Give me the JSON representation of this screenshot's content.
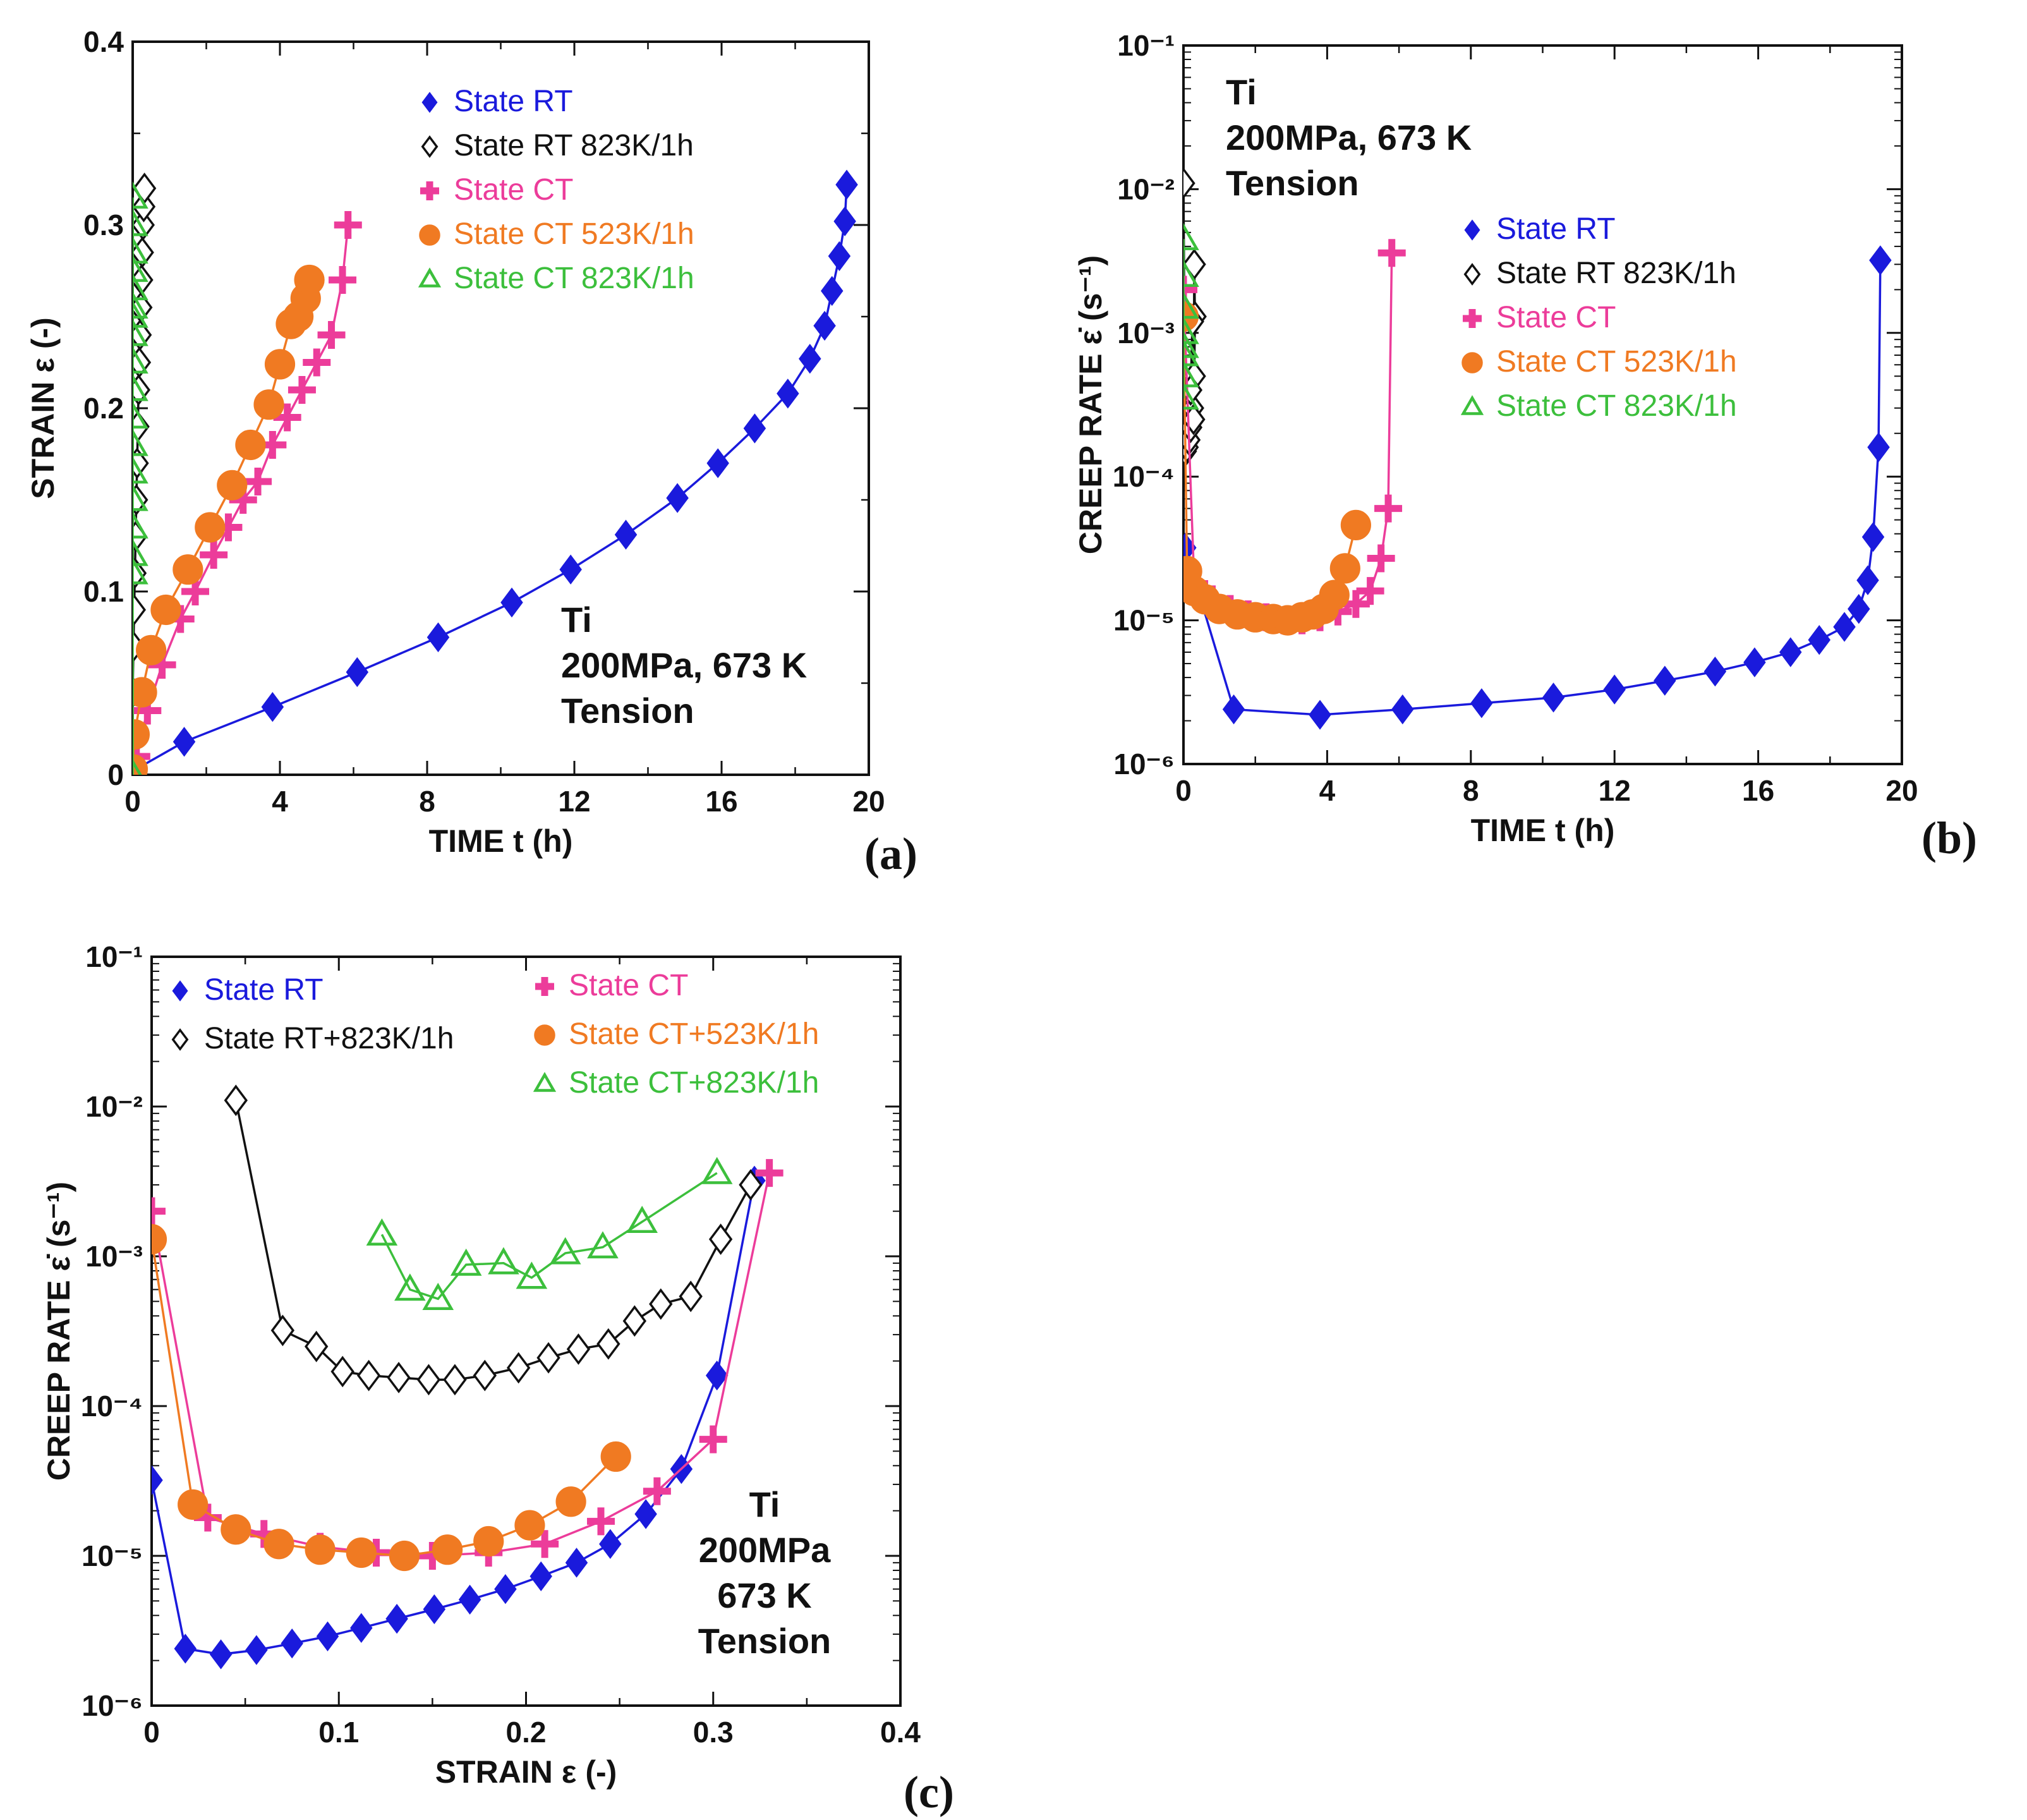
{
  "colors": {
    "State RT": "#1a1adc",
    "State RT 823K/1h": "#111111",
    "State CT": "#ec3c9a",
    "State CT 523K/1h": "#f07a22",
    "State CT 823K/1h": "#3cbf3c"
  },
  "chart_data": [
    {
      "id": "a",
      "type": "line",
      "panel_label": "(a)",
      "xlabel": "TIME t (h)",
      "ylabel": "STRAIN ε (-)",
      "xlim": [
        0,
        20
      ],
      "ylim": [
        0,
        0.4
      ],
      "yscale": "linear",
      "xticks": [
        "0",
        "4",
        "8",
        "12",
        "16",
        "20"
      ],
      "yticks": [
        "0",
        "0.1",
        "0.2",
        "0.3",
        "0.4"
      ],
      "annotation": [
        "Ti",
        "200MPa, 673 K",
        "Tension"
      ],
      "legend_position": "top-right",
      "series": [
        {
          "name": "State RT",
          "marker": "diamond-filled",
          "x": [
            0,
            1.4,
            3.8,
            6.1,
            8.3,
            10.3,
            11.9,
            13.4,
            14.8,
            15.9,
            16.9,
            17.8,
            18.4,
            18.8,
            19.0,
            19.2,
            19.35,
            19.4
          ],
          "y": [
            0.002,
            0.018,
            0.037,
            0.056,
            0.075,
            0.094,
            0.112,
            0.131,
            0.151,
            0.17,
            0.189,
            0.208,
            0.227,
            0.245,
            0.264,
            0.283,
            0.302,
            0.322
          ]
        },
        {
          "name": "State RT 823K/1h",
          "marker": "diamond-open",
          "x": [
            0.0,
            0.02,
            0.04,
            0.06,
            0.08,
            0.1,
            0.12,
            0.14,
            0.16,
            0.18,
            0.2,
            0.22,
            0.24,
            0.26,
            0.28,
            0.3,
            0.32
          ],
          "y": [
            0.045,
            0.07,
            0.09,
            0.11,
            0.13,
            0.15,
            0.17,
            0.19,
            0.21,
            0.225,
            0.24,
            0.255,
            0.27,
            0.285,
            0.3,
            0.31,
            0.32
          ]
        },
        {
          "name": "State CT",
          "marker": "plus",
          "x": [
            0.1,
            0.4,
            0.8,
            1.3,
            1.7,
            2.2,
            2.6,
            3.0,
            3.4,
            3.8,
            4.2,
            4.6,
            5.0,
            5.4,
            5.7,
            5.85
          ],
          "y": [
            0.01,
            0.035,
            0.06,
            0.085,
            0.1,
            0.12,
            0.135,
            0.15,
            0.16,
            0.18,
            0.195,
            0.21,
            0.225,
            0.24,
            0.27,
            0.3
          ]
        },
        {
          "name": "State CT 523K/1h",
          "marker": "circle-filled",
          "x": [
            0.0,
            0.05,
            0.25,
            0.5,
            0.9,
            1.5,
            2.1,
            2.7,
            3.2,
            3.7,
            4.0,
            4.3,
            4.5,
            4.7,
            4.8
          ],
          "y": [
            0.003,
            0.022,
            0.045,
            0.068,
            0.09,
            0.112,
            0.135,
            0.158,
            0.18,
            0.202,
            0.224,
            0.246,
            0.25,
            0.26,
            0.27
          ]
        },
        {
          "name": "State CT 823K/1h",
          "marker": "triangle-open",
          "x": [
            0.0,
            0.0,
            0.0,
            0.0,
            0.0,
            0.0,
            0.0,
            0.0,
            0.0,
            0.0,
            0.0,
            0.0,
            0.0,
            0.0,
            0.0,
            0.0,
            0.0,
            0.0
          ],
          "y": [
            0.0,
            0.11,
            0.12,
            0.135,
            0.15,
            0.165,
            0.18,
            0.195,
            0.21,
            0.225,
            0.24,
            0.25,
            0.255,
            0.265,
            0.275,
            0.285,
            0.3,
            0.315
          ]
        }
      ]
    },
    {
      "id": "b",
      "type": "line",
      "panel_label": "(b)",
      "xlabel": "TIME t (h)",
      "ylabel": "CREEP RATE ε̇ (s⁻¹)",
      "xlim": [
        0,
        20
      ],
      "ylim": [
        1e-06,
        0.1
      ],
      "yscale": "log",
      "xticks": [
        "0",
        "4",
        "8",
        "12",
        "16",
        "20"
      ],
      "yticks": [
        "10⁻⁶",
        "10⁻⁵",
        "10⁻⁴",
        "10⁻³",
        "10⁻²",
        "10⁻¹"
      ],
      "annotation": [
        "Ti",
        "200MPa, 673 K",
        "Tension"
      ],
      "legend_position": "top-right",
      "series": [
        {
          "name": "State RT",
          "marker": "diamond-filled",
          "x": [
            0.05,
            1.4,
            3.8,
            6.1,
            8.3,
            10.3,
            12.0,
            13.4,
            14.8,
            15.9,
            16.9,
            17.7,
            18.4,
            18.8,
            19.05,
            19.2,
            19.35,
            19.4
          ],
          "y": [
            3.2e-05,
            2.4e-06,
            2.2e-06,
            2.4e-06,
            2.65e-06,
            2.9e-06,
            3.3e-06,
            3.8e-06,
            4.4e-06,
            5.1e-06,
            6e-06,
            7.3e-06,
            9e-06,
            1.2e-05,
            1.9e-05,
            3.8e-05,
            0.00016,
            0.0032
          ]
        },
        {
          "name": "State RT 823K/1h",
          "marker": "diamond-open",
          "x": [
            0.0,
            0.05,
            0.1,
            0.15,
            0.2,
            0.25,
            0.3,
            0.32,
            0.3,
            0.28,
            0.25,
            0.2
          ],
          "y": [
            0.011,
            0.00015,
            0.00016,
            0.00018,
            0.00022,
            0.0003,
            0.0005,
            0.0013,
            0.003,
            0.00025,
            0.0012,
            0.0004
          ]
        },
        {
          "name": "State CT",
          "marker": "plus",
          "x": [
            0.0,
            0.3,
            0.8,
            1.3,
            1.8,
            2.3,
            2.8,
            3.3,
            3.8,
            4.3,
            4.8,
            5.2,
            5.5,
            5.7,
            5.8
          ],
          "y": [
            0.002,
            1.8e-05,
            1.4e-05,
            1.2e-05,
            1.1e-05,
            1.05e-05,
            1e-05,
            1e-05,
            1.05e-05,
            1.15e-05,
            1.3e-05,
            1.6e-05,
            2.7e-05,
            6e-05,
            0.0036
          ]
        },
        {
          "name": "State CT 523K/1h",
          "marker": "circle-filled",
          "x": [
            0.0,
            0.1,
            0.3,
            0.6,
            1.0,
            1.5,
            2.0,
            2.5,
            2.9,
            3.3,
            3.6,
            3.9,
            4.2,
            4.5,
            4.8
          ],
          "y": [
            0.0013,
            2.2e-05,
            1.6e-05,
            1.4e-05,
            1.2e-05,
            1.1e-05,
            1.05e-05,
            1.02e-05,
            1e-05,
            1.05e-05,
            1.1e-05,
            1.2e-05,
            1.5e-05,
            2.3e-05,
            4.6e-05
          ]
        },
        {
          "name": "State CT 823K/1h",
          "marker": "triangle-open",
          "x": [
            0.0,
            0.0,
            0.0,
            0.0,
            0.0,
            0.0,
            0.0,
            0.0
          ],
          "y": [
            0.0045,
            0.0025,
            0.0015,
            0.001,
            0.0008,
            0.0007,
            0.0005,
            0.00035
          ]
        }
      ]
    },
    {
      "id": "c",
      "type": "line",
      "panel_label": "(c)",
      "xlabel": "STRAIN ε (-)",
      "ylabel": "CREEP RATE ε̇ (s⁻¹)",
      "xlim": [
        0,
        0.4
      ],
      "ylim": [
        1e-06,
        0.1
      ],
      "yscale": "log",
      "xticks": [
        "0",
        "0.1",
        "0.2",
        "0.3",
        "0.4"
      ],
      "yticks": [
        "10⁻⁶",
        "10⁻⁵",
        "10⁻⁴",
        "10⁻³",
        "10⁻²",
        "10⁻¹"
      ],
      "annotation": [
        "Ti",
        "200MPa",
        "673 K",
        "Tension"
      ],
      "legend_position": "top",
      "series": [
        {
          "name": "State RT",
          "label": "State RT",
          "marker": "diamond-filled",
          "x": [
            0.0,
            0.018,
            0.037,
            0.056,
            0.075,
            0.094,
            0.112,
            0.131,
            0.151,
            0.17,
            0.189,
            0.208,
            0.227,
            0.245,
            0.264,
            0.283,
            0.302,
            0.322
          ],
          "y": [
            3.2e-05,
            2.4e-06,
            2.2e-06,
            2.35e-06,
            2.6e-06,
            2.9e-06,
            3.3e-06,
            3.8e-06,
            4.4e-06,
            5.1e-06,
            6e-06,
            7.3e-06,
            9e-06,
            1.2e-05,
            1.9e-05,
            3.8e-05,
            0.00016,
            0.0032
          ]
        },
        {
          "name": "State RT 823K/1h",
          "label": "State RT+823K/1h",
          "marker": "diamond-open",
          "x": [
            0.045,
            0.07,
            0.088,
            0.102,
            0.116,
            0.132,
            0.148,
            0.162,
            0.178,
            0.196,
            0.212,
            0.228,
            0.244,
            0.258,
            0.272,
            0.288,
            0.304,
            0.32
          ],
          "y": [
            0.011,
            0.00032,
            0.00025,
            0.00017,
            0.00016,
            0.000155,
            0.00015,
            0.00015,
            0.00016,
            0.00018,
            0.00021,
            0.00024,
            0.00026,
            0.00037,
            0.00048,
            0.00054,
            0.0013,
            0.003
          ]
        },
        {
          "name": "State CT",
          "label": "State CT",
          "marker": "plus",
          "x": [
            0.0,
            0.03,
            0.06,
            0.09,
            0.12,
            0.15,
            0.18,
            0.21,
            0.24,
            0.27,
            0.3,
            0.33
          ],
          "y": [
            0.002,
            1.8e-05,
            1.4e-05,
            1.15e-05,
            1.05e-05,
            1e-05,
            1.05e-05,
            1.2e-05,
            1.7e-05,
            2.7e-05,
            6e-05,
            0.0036
          ]
        },
        {
          "name": "State CT 523K/1h",
          "label": "State CT+523K/1h",
          "marker": "circle-filled",
          "x": [
            0.0,
            0.022,
            0.045,
            0.068,
            0.09,
            0.112,
            0.135,
            0.158,
            0.18,
            0.202,
            0.224,
            0.248
          ],
          "y": [
            0.0013,
            2.2e-05,
            1.5e-05,
            1.2e-05,
            1.1e-05,
            1.05e-05,
            1e-05,
            1.1e-05,
            1.25e-05,
            1.6e-05,
            2.3e-05,
            4.6e-05
          ]
        },
        {
          "name": "State CT 823K/1h",
          "label": "State CT+823K/1h",
          "marker": "triangle-open",
          "x": [
            0.123,
            0.138,
            0.153,
            0.168,
            0.188,
            0.203,
            0.221,
            0.241,
            0.262,
            0.302
          ],
          "y": [
            0.0014,
            0.0006,
            0.00052,
            0.00088,
            0.0009,
            0.00072,
            0.00105,
            0.00115,
            0.0017,
            0.0036
          ]
        }
      ]
    }
  ]
}
